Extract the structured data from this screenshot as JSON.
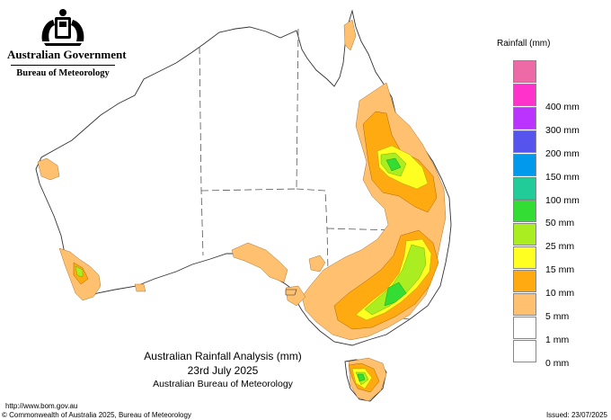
{
  "header": {
    "government": "Australian Government",
    "bureau": "Bureau of Meteorology"
  },
  "legend": {
    "title": "Rainfall (mm)",
    "items": [
      {
        "label": "",
        "color": "#ee6aa6"
      },
      {
        "label": "400 mm",
        "color": "#ff33cc"
      },
      {
        "label": "300 mm",
        "color": "#bb33ff"
      },
      {
        "label": "200 mm",
        "color": "#5555ee"
      },
      {
        "label": "150 mm",
        "color": "#0099ee"
      },
      {
        "label": "100 mm",
        "color": "#22cc99"
      },
      {
        "label": "50 mm",
        "color": "#33dd33"
      },
      {
        "label": "25 mm",
        "color": "#aaee22"
      },
      {
        "label": "15 mm",
        "color": "#ffff22"
      },
      {
        "label": "10 mm",
        "color": "#ffaa11"
      },
      {
        "label": "5 mm",
        "color": "#ffc070"
      },
      {
        "label": "1 mm",
        "color": "#ffffff"
      },
      {
        "label": "0 mm",
        "color": "#ffffff"
      }
    ]
  },
  "title": {
    "line1": "Australian Rainfall Analysis (mm)",
    "line2": "23rd July 2025",
    "line3": "Australian Bureau of Meteorology"
  },
  "footer": {
    "url": "http://www.bom.gov.au",
    "copyright": "© Commonwealth of Australia 2025, Bureau of Meteorology",
    "issued": "Issued: 23/07/2025"
  }
}
